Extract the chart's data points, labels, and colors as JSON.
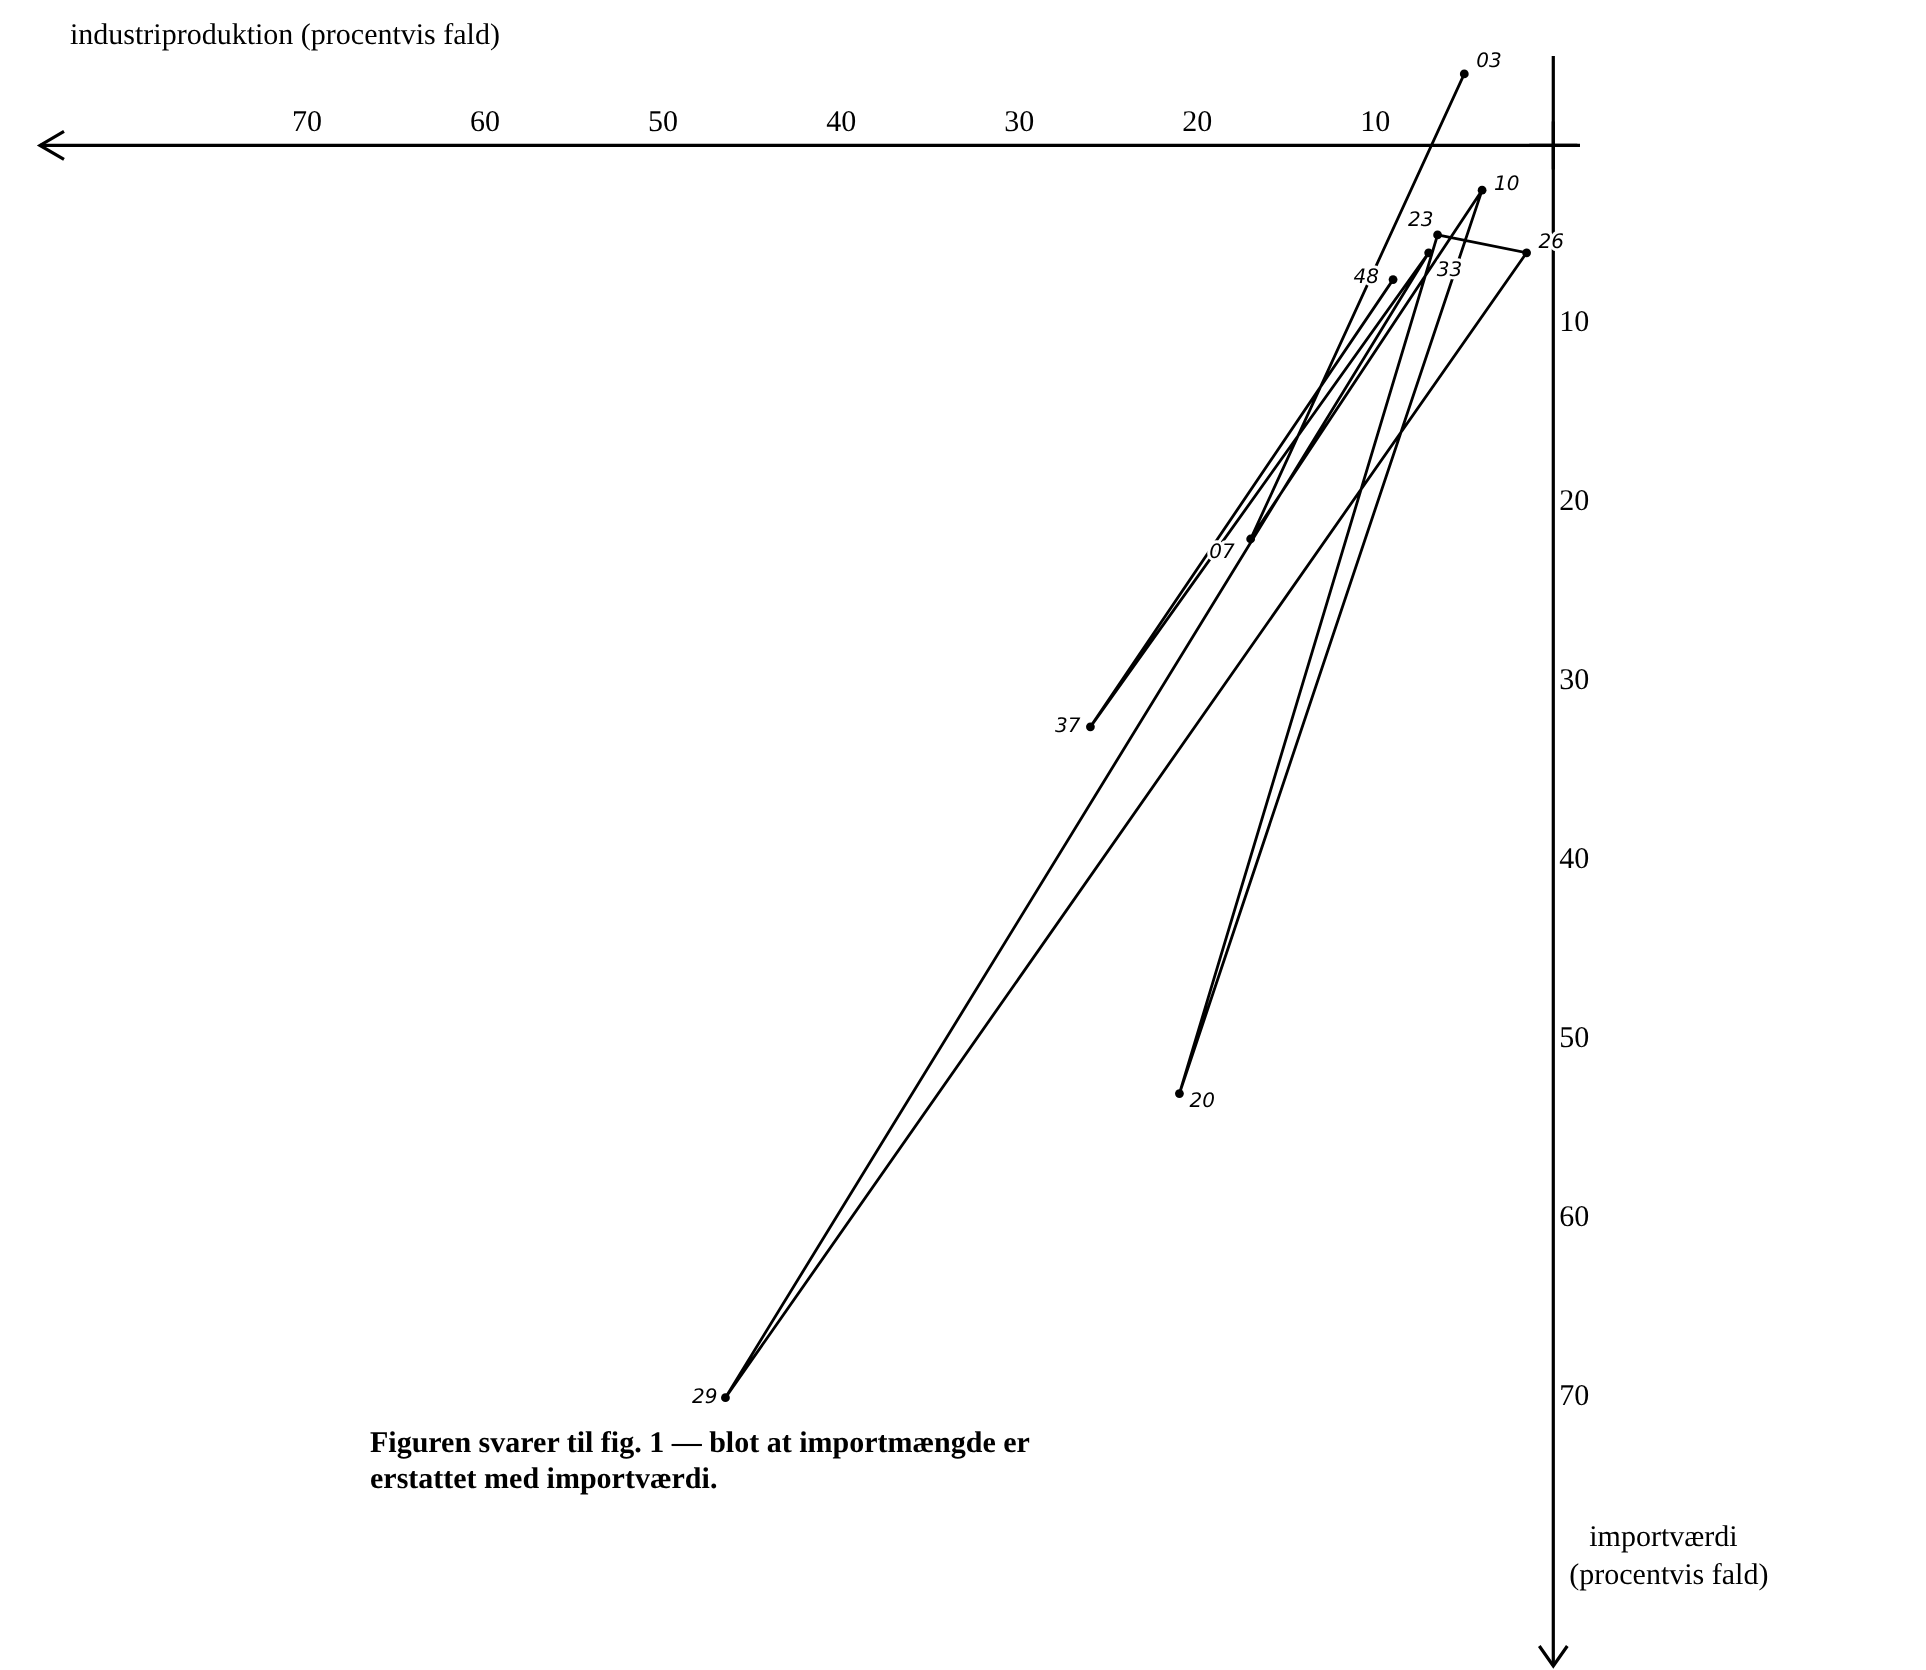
{
  "chart_data": {
    "type": "line",
    "xlabel": "industriproduktion (procentvis fald)",
    "ylabel": "importværdi (procentvis fald)",
    "xlim": [
      85,
      -1.5
    ],
    "ylim": [
      85,
      -5
    ],
    "xticks": [
      {
        "value": 0,
        "label": null
      },
      10,
      20,
      30,
      40,
      50,
      60,
      70
    ],
    "yticks": [
      {
        "value": 0,
        "label": null
      },
      10,
      20,
      30,
      40,
      50,
      60,
      70
    ],
    "marker": "circle",
    "line_style": "solid",
    "series": [
      {
        "color": "#000000",
        "x": [
          5,
          17,
          4,
          21,
          6.5,
          1.5,
          46.5,
          7,
          26,
          9
        ],
        "values": [
          -4,
          22,
          2.5,
          53,
          5,
          6,
          70,
          6,
          32.5,
          7.5
        ]
      }
    ],
    "annotations": [
      {
        "text": "03",
        "x": 5,
        "y": -4
      },
      {
        "text": "07",
        "x": 17,
        "y": 22
      },
      {
        "text": "10",
        "x": 4,
        "y": 2.5
      },
      {
        "text": "20",
        "x": 21,
        "y": 53
      },
      {
        "text": "23",
        "x": 6.5,
        "y": 5
      },
      {
        "text": "26",
        "x": 1.5,
        "y": 6
      },
      {
        "text": "29",
        "x": 46.5,
        "y": 70
      },
      {
        "text": "33",
        "x": 7,
        "y": 6
      },
      {
        "text": "37",
        "x": 26,
        "y": 32.5
      },
      {
        "text": "48",
        "x": 9,
        "y": 7.5
      },
      "Figuren svarer til fig. 1 — blot at importmængde er erstattet med importværdi."
    ]
  }
}
